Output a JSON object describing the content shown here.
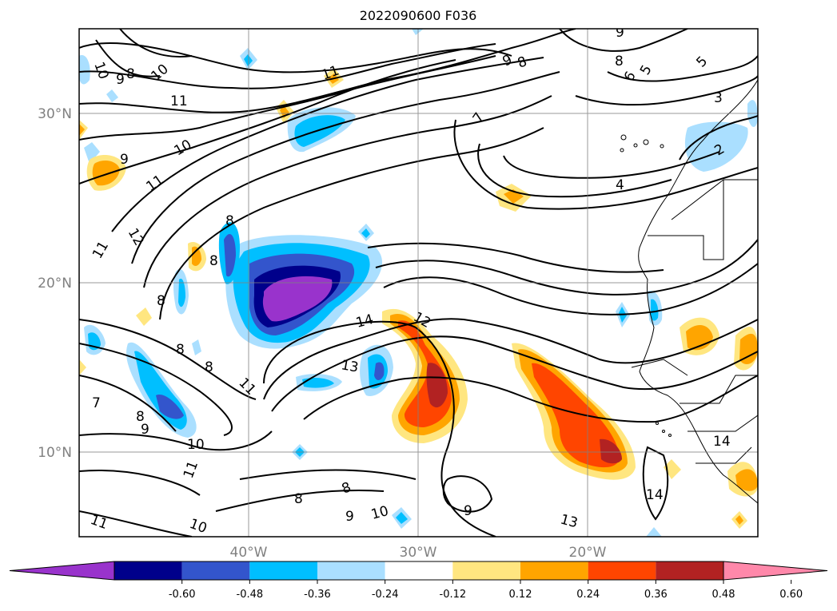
{
  "title": "2022090600 F036",
  "lat_labels": [
    "30°N",
    "20°N",
    "10°N"
  ],
  "lon_labels": [
    "40°W",
    "30°W",
    "20°W"
  ],
  "colorbar": {
    "ticks": [
      "-0.60",
      "-0.48",
      "-0.36",
      "-0.24",
      "-0.12",
      "0.12",
      "0.24",
      "0.36",
      "0.48",
      "0.60"
    ],
    "colors": [
      "#9933cc",
      "#00008b",
      "#3355cc",
      "#00bfff",
      "#aadfff",
      "#ffffff",
      "#ffe680",
      "#ffa500",
      "#ff4500",
      "#b22222",
      "#ff88aa"
    ]
  },
  "contour_labels": [
    "10",
    "9",
    "8",
    "10",
    "11",
    "10",
    "9",
    "11",
    "11",
    "12",
    "11",
    "8",
    "8",
    "8",
    "8",
    "8",
    "7",
    "8",
    "9",
    "10",
    "11",
    "11",
    "10",
    "9",
    "8",
    "9",
    "8",
    "7",
    "6",
    "5",
    "5",
    "4",
    "3",
    "2",
    "12",
    "14",
    "13",
    "11",
    "14",
    "14",
    "13",
    "9",
    "8",
    "8",
    "9",
    "10"
  ],
  "colors": {
    "contour": "#000000",
    "grid": "#808080",
    "coast": "#000000"
  }
}
